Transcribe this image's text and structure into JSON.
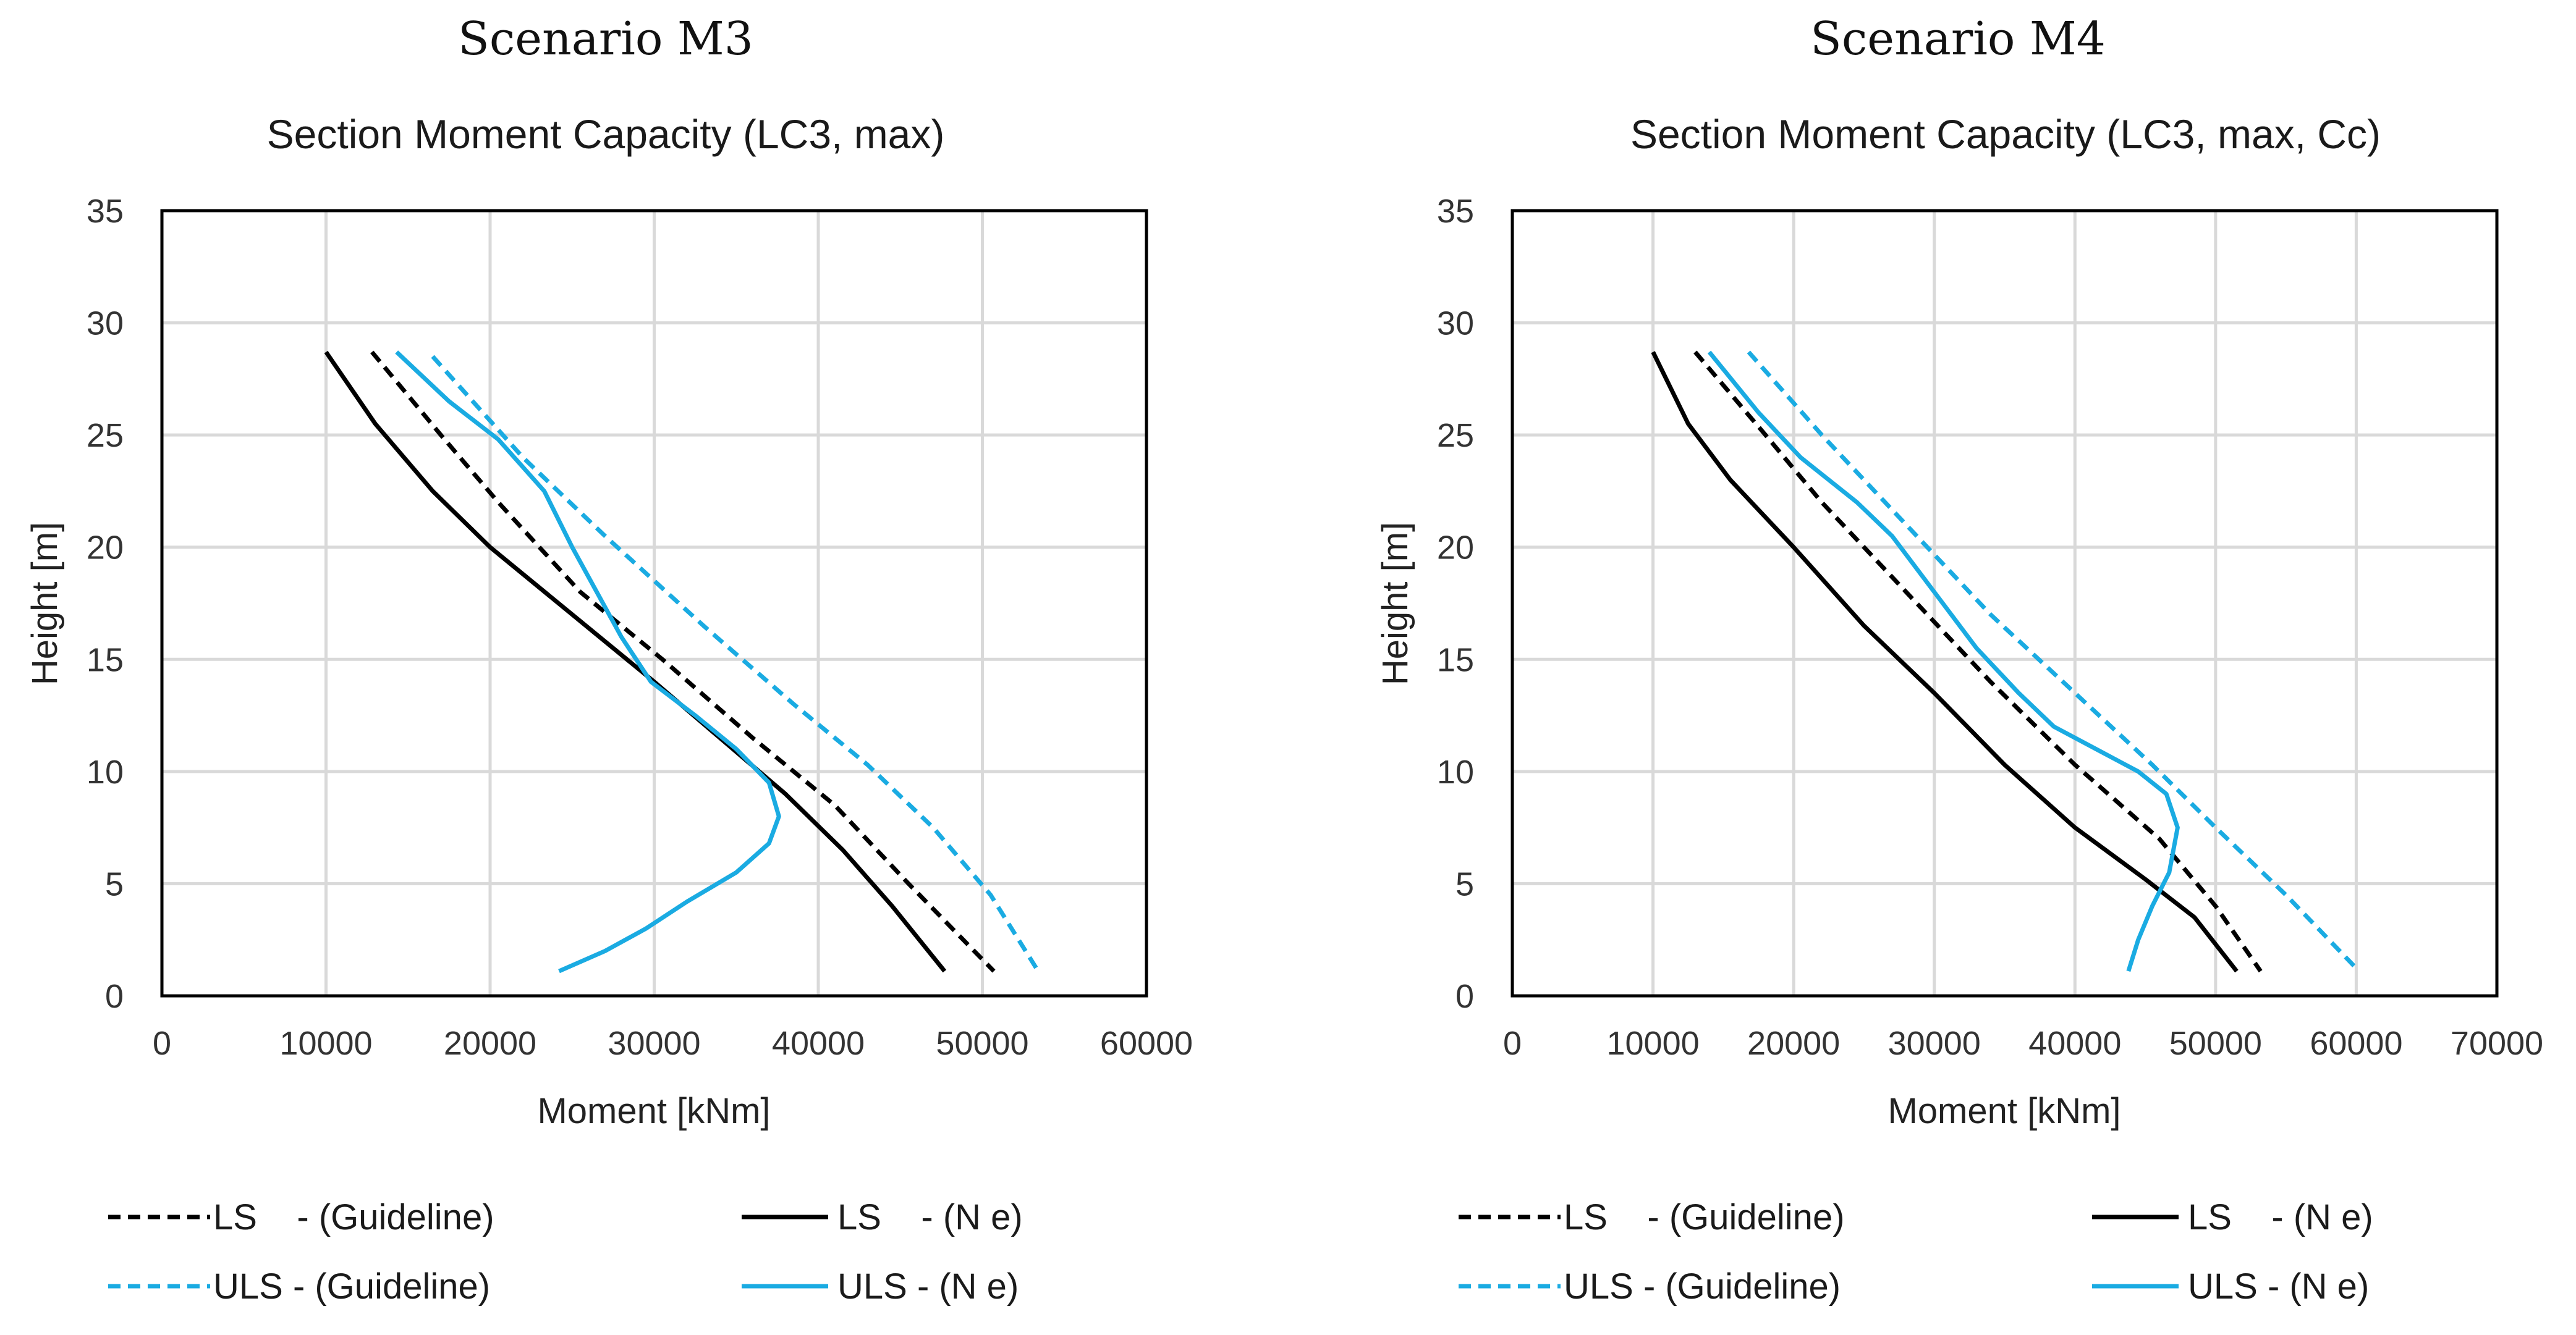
{
  "colors": {
    "ls": "#000000",
    "uls": "#1aabe2",
    "grid": "#d9d9d9"
  },
  "chart_data": [
    {
      "type": "line",
      "scenario": "Scenario M3",
      "title": "Section Moment Capacity (LC3, max)",
      "xlabel": "Moment [kNm]",
      "ylabel": "Height [m]",
      "xlim": [
        0,
        60000
      ],
      "ylim": [
        0,
        35
      ],
      "xticks": [
        0,
        10000,
        20000,
        30000,
        40000,
        50000,
        60000
      ],
      "yticks": [
        0,
        5,
        10,
        15,
        20,
        25,
        30,
        35
      ],
      "xtick_labels": [
        "0",
        "10000",
        "20000",
        "30000",
        "40000",
        "50000",
        "60000"
      ],
      "ytick_labels": [
        "0",
        "5",
        "10",
        "15",
        "20",
        "25",
        "30",
        "35"
      ],
      "grid": true,
      "legend": "bottom",
      "series": [
        {
          "name": "LS    - (Guideline)",
          "style": "dashed",
          "color": "#000000",
          "x": [
            12800,
            17000,
            20500,
            25500,
            30500,
            36000,
            41000,
            45500,
            50700
          ],
          "y": [
            28.7,
            25.0,
            22.0,
            18.0,
            15.0,
            11.5,
            8.5,
            5.0,
            1.1
          ]
        },
        {
          "name": "LS    - (N e)",
          "style": "solid",
          "color": "#000000",
          "x": [
            10000,
            13000,
            16500,
            20000,
            25000,
            30000,
            34000,
            38000,
            41500,
            44500,
            47700
          ],
          "y": [
            28.7,
            25.5,
            22.5,
            20.0,
            17.0,
            14.0,
            11.5,
            9.0,
            6.5,
            4.0,
            1.1
          ]
        },
        {
          "name": "ULS - (Guideline)",
          "style": "dashed",
          "color": "#1aabe2",
          "x": [
            16500,
            22000,
            27000,
            33000,
            38500,
            43000,
            47000,
            50500,
            53400
          ],
          "y": [
            28.5,
            24.0,
            20.5,
            16.5,
            13.0,
            10.3,
            7.5,
            4.5,
            1.1
          ]
        },
        {
          "name": "ULS - (N e)",
          "style": "solid",
          "color": "#1aabe2",
          "x": [
            14300,
            17500,
            20500,
            23300,
            25000,
            26500,
            28000,
            29800,
            32500,
            35000,
            37000,
            37600,
            37000,
            35000,
            32000,
            29500,
            27000,
            24200
          ],
          "y": [
            28.7,
            26.5,
            24.8,
            22.5,
            20.0,
            18.0,
            16.0,
            14.0,
            12.5,
            11.0,
            9.5,
            8.0,
            6.8,
            5.5,
            4.2,
            3.0,
            2.0,
            1.1
          ]
        }
      ]
    },
    {
      "type": "line",
      "scenario": "Scenario M4",
      "title": "Section Moment Capacity (LC3, max, Cc)",
      "xlabel": "Moment [kNm]",
      "ylabel": "Height [m]",
      "xlim": [
        0,
        70000
      ],
      "ylim": [
        0,
        35
      ],
      "xticks": [
        0,
        10000,
        20000,
        30000,
        40000,
        50000,
        60000,
        70000
      ],
      "yticks": [
        0,
        5,
        10,
        15,
        20,
        25,
        30,
        35
      ],
      "xtick_labels": [
        "0",
        "10000",
        "20000",
        "30000",
        "40000",
        "50000",
        "60000",
        "70000"
      ],
      "ytick_labels": [
        "0",
        "5",
        "10",
        "15",
        "20",
        "25",
        "30",
        "35"
      ],
      "grid": true,
      "legend": "bottom",
      "series": [
        {
          "name": "LS    - (Guideline)",
          "style": "dashed",
          "color": "#000000",
          "x": [
            13000,
            18000,
            22000,
            28000,
            34000,
            40000,
            46000,
            50000,
            53200
          ],
          "y": [
            28.7,
            25.0,
            22.0,
            18.0,
            14.0,
            10.3,
            7.0,
            4.0,
            1.1
          ]
        },
        {
          "name": "LS    - (N e)",
          "style": "solid",
          "color": "#000000",
          "x": [
            10000,
            12500,
            15500,
            20000,
            25000,
            30000,
            35000,
            40000,
            45000,
            48500,
            51500
          ],
          "y": [
            28.7,
            25.5,
            23.0,
            20.0,
            16.5,
            13.5,
            10.3,
            7.5,
            5.2,
            3.5,
            1.1
          ]
        },
        {
          "name": "ULS - (Guideline)",
          "style": "dashed",
          "color": "#1aabe2",
          "x": [
            16800,
            22000,
            28000,
            34000,
            40000,
            45500,
            50000,
            55000,
            60200
          ],
          "y": [
            28.7,
            25.0,
            21.0,
            17.0,
            13.5,
            10.3,
            7.5,
            4.5,
            1.1
          ]
        },
        {
          "name": "ULS - (N e)",
          "style": "solid",
          "color": "#1aabe2",
          "x": [
            14000,
            17500,
            20500,
            24500,
            27000,
            30000,
            33000,
            36000,
            38500,
            41500,
            44500,
            46500,
            47300,
            46700,
            45500,
            44500,
            43800
          ],
          "y": [
            28.7,
            26.0,
            24.0,
            22.0,
            20.5,
            18.0,
            15.5,
            13.5,
            12.0,
            11.0,
            10.0,
            9.0,
            7.5,
            5.5,
            4.0,
            2.5,
            1.1
          ]
        }
      ]
    }
  ]
}
